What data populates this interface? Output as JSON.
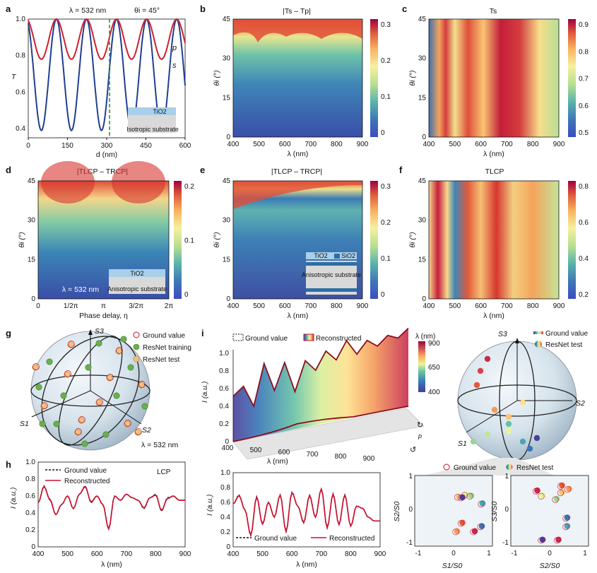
{
  "panel_labels": {
    "a": "a",
    "b": "b",
    "c": "c",
    "d": "d",
    "e": "e",
    "f": "f",
    "g": "g",
    "h": "h",
    "i": "i"
  },
  "panel_a": {
    "title_lambda": "λ = 532 nm",
    "title_theta": "θi = 45°",
    "ylabel": "T",
    "xlabel": "d (nm)",
    "curve_p_label": "p",
    "curve_s_label": "s",
    "legend_top": "TiO2",
    "legend_bottom": "Isotropic substrate",
    "xticks": [
      "0",
      "150",
      "300",
      "450",
      "600"
    ],
    "yticks": [
      "0.4",
      "0.6",
      "0.8",
      "1.0"
    ]
  },
  "panel_b": {
    "title": "|Ts – Tp|",
    "xlabel": "λ (nm)",
    "ylabel": "θi (°)",
    "cbar_ticks": [
      "0",
      "0.1",
      "0.2",
      "0.3"
    ]
  },
  "panel_c": {
    "title": "Ts",
    "xlabel": "λ (nm)",
    "ylabel": "θi (°)",
    "cbar_ticks": [
      "0.5",
      "0.6",
      "0.7",
      "0.8",
      "0.9"
    ]
  },
  "panel_d": {
    "title": "|TLCP – TRCP|",
    "xlabel": "Phase delay, η",
    "ylabel": "θi (°)",
    "cbar_ticks": [
      "0",
      "0.1",
      "0.2"
    ],
    "xticks": [
      "0",
      "1/2π",
      "π",
      "3/2π",
      "2π"
    ],
    "annot": "λ = 532 nm",
    "legend_top": "TiO2",
    "legend_bottom": "Anisotropic substrate"
  },
  "panel_e": {
    "title": "|TLCP – TRCP|",
    "xlabel": "λ (nm)",
    "ylabel": "θi (°)",
    "cbar_ticks": [
      "0",
      "0.1",
      "0.2",
      "0.3"
    ],
    "legend_a": "TiO2",
    "legend_b": "SiO2",
    "legend_bottom": "Anisotropic substrate"
  },
  "panel_f": {
    "title": "TLCP",
    "xlabel": "λ (nm)",
    "ylabel": "θi (°)",
    "cbar_ticks": [
      "0.2",
      "0.4",
      "0.6",
      "0.8"
    ]
  },
  "heatmap_xticks": [
    "400",
    "500",
    "600",
    "700",
    "800",
    "900"
  ],
  "heatmap_yticks": [
    "0",
    "15",
    "30",
    "45"
  ],
  "panel_g": {
    "legend": [
      "Ground value",
      "ResNet training",
      "ResNet test"
    ],
    "annot": "λ = 532 nm",
    "axes": [
      "S3",
      "S1",
      "S2"
    ]
  },
  "panel_h": {
    "legend": [
      "Ground value",
      "Reconstructed"
    ],
    "annot": "LCP",
    "ylabel": "I (a.u.)",
    "xlabel": "λ (nm)",
    "xticks": [
      "400",
      "500",
      "600",
      "700",
      "800",
      "900"
    ],
    "yticks": [
      "0",
      "0.2",
      "0.4",
      "0.6",
      "0.8",
      "1.0"
    ]
  },
  "panel_i": {
    "legend": [
      "Ground value",
      "Reconstructed"
    ],
    "cbar_title": "λ (nm)",
    "cbar_ticks": [
      "400",
      "650",
      "900"
    ],
    "ylabel": "I (a.u.)",
    "xlabel": "λ (nm)",
    "yticks": [
      "0",
      "0.2",
      "0.4",
      "0.6",
      "0.8",
      "1.0"
    ],
    "xticks": [
      "400",
      "500",
      "600",
      "700",
      "800",
      "900"
    ],
    "pol_label": "p",
    "sphere_legend": [
      "Ground value",
      "ResNet test"
    ],
    "sphere_axes": [
      "S3",
      "S2",
      "S1"
    ]
  },
  "panel_i_lower": {
    "legend": [
      "Ground value",
      "Reconstructed"
    ],
    "ylabel": "I (a.u.)",
    "xlabel": "λ (nm)",
    "xticks": [
      "400",
      "500",
      "600",
      "700",
      "800",
      "900"
    ],
    "yticks": [
      "0",
      "0.2",
      "0.4",
      "0.6",
      "0.8",
      "1.0"
    ]
  },
  "panel_i_scatter": {
    "legend": [
      "Ground value",
      "ResNet test"
    ],
    "left": {
      "xlabel": "S1/S0",
      "ylabel": "S2/S0",
      "ticks": [
        "-1",
        "0",
        "1"
      ]
    },
    "right": {
      "xlabel": "S2/S0",
      "ylabel": "S3/S0",
      "ticks": [
        "-1",
        "0",
        "1"
      ]
    }
  },
  "colors": {
    "p_curve": "#d0202c",
    "s_curve": "#1f3f93",
    "green_dash": "#1f9a3a",
    "recon": "#c8102e"
  },
  "chart_data": [
    {
      "type": "line",
      "id": "a",
      "title": "λ = 532 nm, θi = 45°",
      "xlabel": "d (nm)",
      "ylabel": "T",
      "xlim": [
        0,
        600
      ],
      "ylim": [
        0.35,
        1.0
      ],
      "series": [
        {
          "name": "p",
          "formula": "oscillating, min≈0.78, max≈1.0, period≈115 nm"
        },
        {
          "name": "s",
          "formula": "oscillating, min≈0.39, max≈1.0, period≈115 nm"
        }
      ],
      "marker_x": 300
    },
    {
      "type": "heatmap",
      "id": "b",
      "title": "|Ts – Tp|",
      "x_range": [
        400,
        900
      ],
      "y_range": [
        0,
        45
      ],
      "c_range": [
        0,
        0.32
      ]
    },
    {
      "type": "heatmap",
      "id": "c",
      "title": "Ts",
      "x_range": [
        400,
        900
      ],
      "y_range": [
        0,
        45
      ],
      "c_range": [
        0.45,
        0.95
      ]
    },
    {
      "type": "heatmap",
      "id": "d",
      "title": "|TLCP – TRCP|",
      "x_range": [
        0,
        6.283
      ],
      "y_range": [
        0,
        45
      ],
      "c_range": [
        0,
        0.28
      ]
    },
    {
      "type": "heatmap",
      "id": "e",
      "title": "|TLCP – TRCP|",
      "x_range": [
        400,
        900
      ],
      "y_range": [
        0,
        45
      ],
      "c_range": [
        0,
        0.32
      ]
    },
    {
      "type": "heatmap",
      "id": "f",
      "title": "TLCP",
      "x_range": [
        400,
        900
      ],
      "y_range": [
        0,
        45
      ],
      "c_range": [
        0.15,
        0.88
      ]
    },
    {
      "type": "line",
      "id": "h",
      "annot": "LCP",
      "xlabel": "λ (nm)",
      "ylabel": "I (a.u.)",
      "xlim": [
        400,
        900
      ],
      "ylim": [
        0,
        1.0
      ],
      "x": [
        400,
        420,
        440,
        460,
        480,
        500,
        520,
        540,
        560,
        580,
        600,
        620,
        640,
        660,
        680,
        700,
        720,
        740,
        760,
        780,
        800,
        820,
        840,
        860,
        880,
        900
      ],
      "series": [
        {
          "name": "Ground value",
          "values": [
            0.52,
            0.72,
            0.55,
            0.38,
            0.5,
            0.6,
            0.45,
            0.62,
            0.72,
            0.52,
            0.6,
            0.5,
            0.22,
            0.6,
            0.55,
            0.62,
            0.58,
            0.55,
            0.45,
            0.58,
            0.62,
            0.42,
            0.58,
            0.6,
            0.55,
            0.55
          ]
        },
        {
          "name": "Reconstructed",
          "values": [
            0.52,
            0.71,
            0.56,
            0.38,
            0.5,
            0.6,
            0.45,
            0.62,
            0.71,
            0.53,
            0.6,
            0.5,
            0.21,
            0.6,
            0.55,
            0.62,
            0.58,
            0.55,
            0.46,
            0.58,
            0.61,
            0.43,
            0.57,
            0.6,
            0.55,
            0.55
          ]
        }
      ]
    },
    {
      "type": "line",
      "id": "i_lower",
      "xlabel": "λ (nm)",
      "ylabel": "I (a.u.)",
      "xlim": [
        400,
        900
      ],
      "ylim": [
        0,
        1.0
      ],
      "x": [
        400,
        420,
        440,
        460,
        480,
        500,
        520,
        540,
        560,
        580,
        600,
        620,
        640,
        660,
        680,
        700,
        720,
        740,
        760,
        780,
        800,
        820,
        840,
        860,
        880,
        900
      ],
      "series": [
        {
          "name": "Ground value",
          "values": [
            0.58,
            0.7,
            0.5,
            0.15,
            0.68,
            0.3,
            0.6,
            0.4,
            0.7,
            0.2,
            0.74,
            0.55,
            0.32,
            0.7,
            0.4,
            0.78,
            0.25,
            0.72,
            0.3,
            0.7,
            0.28,
            0.55,
            0.52,
            0.4,
            0.35,
            0.35
          ]
        },
        {
          "name": "Reconstructed",
          "values": [
            0.58,
            0.69,
            0.5,
            0.16,
            0.67,
            0.31,
            0.6,
            0.4,
            0.7,
            0.21,
            0.73,
            0.55,
            0.33,
            0.69,
            0.4,
            0.78,
            0.26,
            0.71,
            0.3,
            0.7,
            0.28,
            0.55,
            0.52,
            0.4,
            0.35,
            0.35
          ]
        }
      ]
    }
  ]
}
